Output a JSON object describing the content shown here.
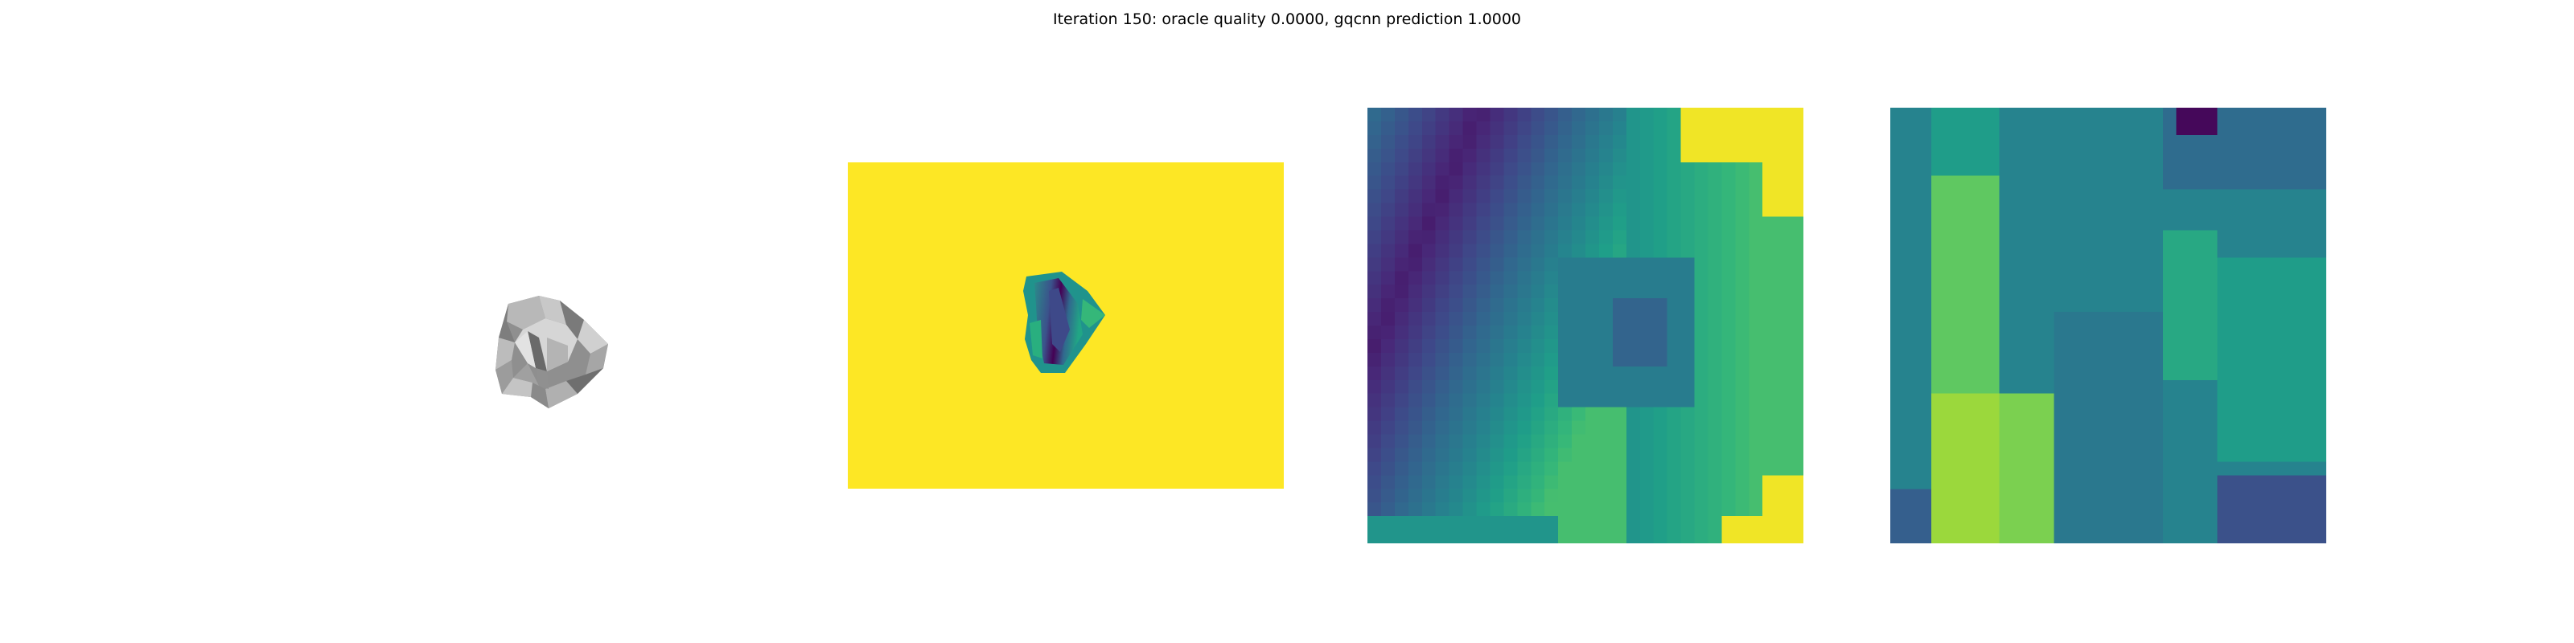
{
  "figure": {
    "title": "Iteration 150: oracle quality 0.0000, gqcnn prediction 1.0000"
  },
  "colors": {
    "viridis_yellow": "#fde725",
    "viridis_dark": "#440154",
    "object_gray": "#9a9a9a"
  },
  "panels": [
    {
      "id": "color-render"
    },
    {
      "id": "depth-image"
    },
    {
      "id": "depth-crop"
    },
    {
      "id": "grasp-crop"
    }
  ]
}
